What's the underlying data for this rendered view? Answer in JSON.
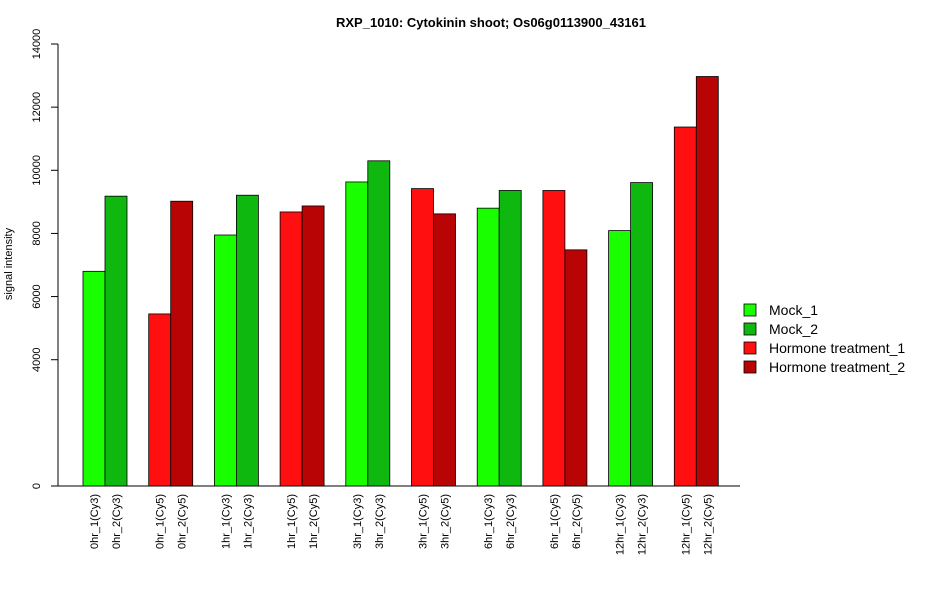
{
  "chart_data": {
    "type": "bar",
    "title": "RXP_1010: Cytokinin shoot; Os06g0113900_43161",
    "xlabel": "",
    "ylabel": "signal intensity",
    "ylim": [
      0,
      14000
    ],
    "yticks": [
      0,
      4000,
      6000,
      8000,
      10000,
      12000,
      14000
    ],
    "grid": false,
    "legend_position": "right",
    "series": [
      {
        "name": "Mock_1",
        "color": "#19ff00"
      },
      {
        "name": "Mock_2",
        "color": "#0fb80f"
      },
      {
        "name": "Hormone treatment_1",
        "color": "#ff0f0f"
      },
      {
        "name": "Hormone treatment_2",
        "color": "#b80404"
      }
    ],
    "bars": [
      {
        "label": "0hr_1(Cy3)",
        "value": 6800,
        "series": 0
      },
      {
        "label": "0hr_2(Cy3)",
        "value": 9180,
        "series": 1
      },
      {
        "label": "0hr_1(Cy5)",
        "value": 5450,
        "series": 2
      },
      {
        "label": "0hr_2(Cy5)",
        "value": 9020,
        "series": 3
      },
      {
        "label": "1hr_1(Cy3)",
        "value": 7950,
        "series": 0
      },
      {
        "label": "1hr_2(Cy3)",
        "value": 9210,
        "series": 1
      },
      {
        "label": "1hr_1(Cy5)",
        "value": 8680,
        "series": 2
      },
      {
        "label": "1hr_2(Cy5)",
        "value": 8870,
        "series": 3
      },
      {
        "label": "3hr_1(Cy3)",
        "value": 9630,
        "series": 0
      },
      {
        "label": "3hr_2(Cy3)",
        "value": 10300,
        "series": 1
      },
      {
        "label": "3hr_1(Cy5)",
        "value": 9420,
        "series": 2
      },
      {
        "label": "3hr_2(Cy5)",
        "value": 8620,
        "series": 3
      },
      {
        "label": "6hr_1(Cy3)",
        "value": 8800,
        "series": 0
      },
      {
        "label": "6hr_2(Cy3)",
        "value": 9360,
        "series": 1
      },
      {
        "label": "6hr_1(Cy5)",
        "value": 9360,
        "series": 2
      },
      {
        "label": "6hr_2(Cy5)",
        "value": 7480,
        "series": 3
      },
      {
        "label": "12hr_1(Cy3)",
        "value": 8090,
        "series": 0
      },
      {
        "label": "12hr_2(Cy3)",
        "value": 9610,
        "series": 1
      },
      {
        "label": "12hr_1(Cy5)",
        "value": 11370,
        "series": 2
      },
      {
        "label": "12hr_2(Cy5)",
        "value": 12970,
        "series": 3
      }
    ]
  }
}
